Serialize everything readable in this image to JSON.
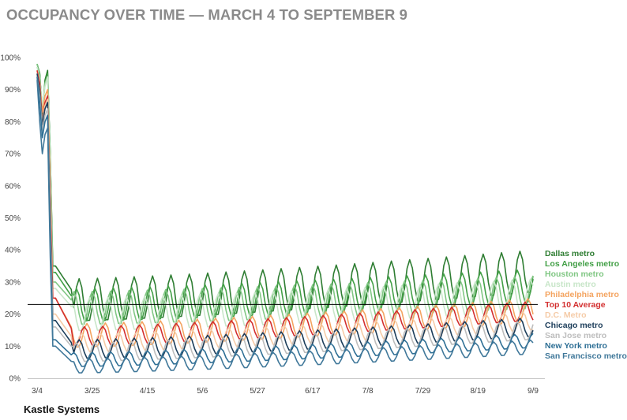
{
  "chart_data": {
    "type": "line",
    "title": "OCCUPANCY OVER TIME — MARCH 4 TO SEPTEMBER 9",
    "source": "Kastle Systems",
    "xlabel": "",
    "ylabel": "",
    "x_ticks": [
      "3/4",
      "3/25",
      "4/15",
      "5/6",
      "5/27",
      "6/17",
      "7/8",
      "7/29",
      "8/19",
      "9/9"
    ],
    "y_ticks": [
      "0%",
      "10%",
      "20%",
      "30%",
      "40%",
      "50%",
      "60%",
      "70%",
      "80%",
      "90%",
      "100%"
    ],
    "ylim": [
      0,
      100
    ],
    "grid": false,
    "reference_line": 23,
    "legend_position": "right",
    "series": [
      {
        "name": "Dallas metro",
        "color": "#2e7d32",
        "start": [
          98,
          95,
          82,
          93,
          96,
          70,
          35
        ],
        "base": 22,
        "amp": 9,
        "end": 31
      },
      {
        "name": "Los Angeles metro",
        "color": "#43a047",
        "start": [
          97,
          95,
          83,
          92,
          95,
          70,
          33
        ],
        "base": 21,
        "amp": 7,
        "end": 27
      },
      {
        "name": "Houston metro",
        "color": "#81c784",
        "start": [
          98,
          94,
          84,
          92,
          94,
          68,
          30
        ],
        "base": 20,
        "amp": 7,
        "end": 25
      },
      {
        "name": "Austin metro",
        "color": "#c8e6c9",
        "start": [
          97,
          93,
          85,
          91,
          94,
          67,
          28
        ],
        "base": 18,
        "amp": 7,
        "end": 24
      },
      {
        "name": "Philadelphia metro",
        "color": "#f4a460",
        "start": [
          96,
          92,
          83,
          88,
          90,
          60,
          25
        ],
        "base": 12,
        "amp": 5,
        "end": 20
      },
      {
        "name": "Top 10 Average",
        "color": "#d32f2f",
        "start": [
          96,
          92,
          80,
          86,
          88,
          55,
          25
        ],
        "base": 12,
        "amp": 4,
        "end": 20
      },
      {
        "name": "D.C. Metro",
        "color": "#f5cba7",
        "start": [
          95,
          90,
          80,
          85,
          87,
          52,
          20
        ],
        "base": 10,
        "amp": 4,
        "end": 17
      },
      {
        "name": "Chicago metro",
        "color": "#1c3d5a",
        "start": [
          95,
          90,
          79,
          84,
          86,
          50,
          18
        ],
        "base": 8,
        "amp": 4,
        "end": 15
      },
      {
        "name": "San Jose metro",
        "color": "#bdbdbd",
        "start": [
          94,
          88,
          77,
          82,
          84,
          46,
          16
        ],
        "base": 7,
        "amp": 4,
        "end": 14
      },
      {
        "name": "New York metro",
        "color": "#2e6f95",
        "start": [
          94,
          86,
          75,
          80,
          82,
          42,
          12
        ],
        "base": 5,
        "amp": 3,
        "end": 11
      },
      {
        "name": "San Francisco metro",
        "color": "#40789a",
        "start": [
          93,
          80,
          70,
          76,
          78,
          38,
          10
        ],
        "base": 3,
        "amp": 3,
        "end": 9
      }
    ]
  }
}
